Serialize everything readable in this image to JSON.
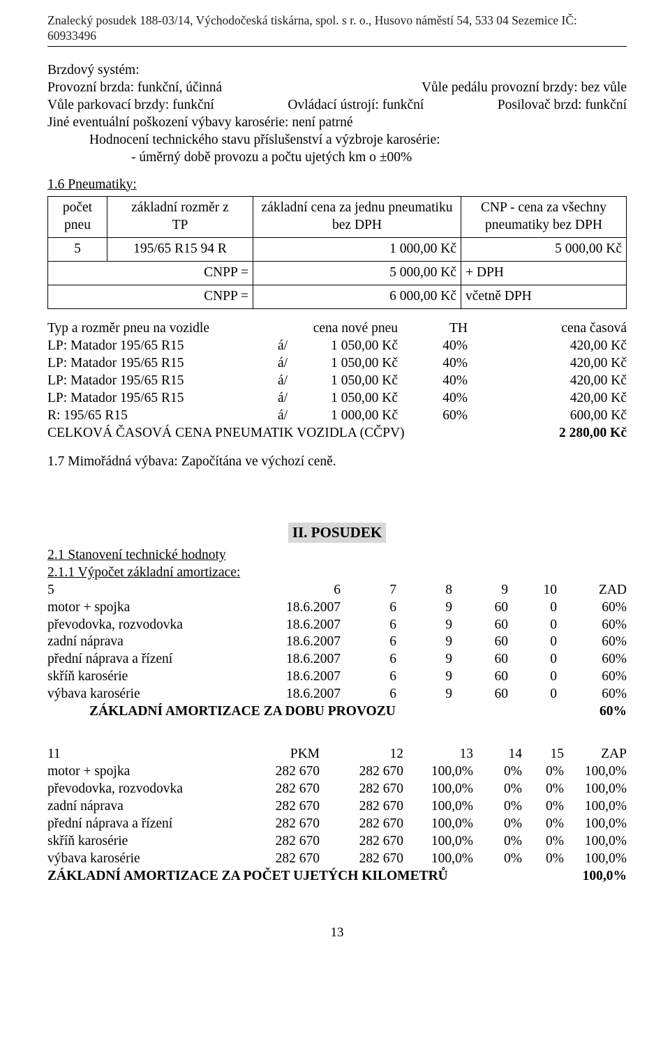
{
  "header": "Znalecký posudek 188-03/14, Východočeská tiskárna, spol. s r. o., Husovo náměstí 54, 533 04 Sezemice IČ: 60933496",
  "brakes": {
    "title": "Brzdový systém:",
    "l1a": "Provozní brzda: funkční, účinná",
    "l1b": "Vůle pedálu provozní brzdy: bez vůle",
    "l2a": "Vůle parkovací brzdy: funkční",
    "l2b": "Ovládací ústrojí: funkční",
    "l2c": "Posilovač brzd: funkční",
    "l3": "Jiné eventuální poškození výbavy karosérie: není patrné",
    "l4": "Hodnocení technického stavu příslušenství a výzbroje karosérie:",
    "l5": "- úměrný době provozu a počtu ujetých km o ±00%"
  },
  "tires": {
    "title": "1.6 Pneumatiky:",
    "h1a": "počet",
    "h1b": "pneu",
    "h2a": "základní rozměr z",
    "h2b": "TP",
    "h3a": "základní cena za jednu pneumatiku",
    "h3b": "bez DPH",
    "h4a": "CNP - cena za všechny",
    "h4b": "pneumatiky bez DPH",
    "r_count": "5",
    "r_size": "195/65 R15 94 R",
    "r_price": "1 000,00 Kč",
    "r_total": "5 000,00 Kč",
    "cnpp": "CNPP =",
    "cnpp_v1": "5 000,00 Kč",
    "cnpp_s1": "+ DPH",
    "cnpp_v2": "6 000,00 Kč",
    "cnpp_s2": "včetně DPH"
  },
  "pneu_list": {
    "hdr": {
      "a": "Typ a rozměr pneu na vozidle",
      "b": "",
      "c": "cena nové pneu",
      "d": "TH",
      "e": "cena   časová"
    },
    "rows": [
      {
        "a": "LP: Matador 195/65 R15",
        "b": "á/",
        "c": "1 050,00 Kč",
        "d": "40%",
        "e": "420,00 Kč"
      },
      {
        "a": "LP: Matador 195/65 R15",
        "b": "á/",
        "c": "1 050,00 Kč",
        "d": "40%",
        "e": "420,00 Kč"
      },
      {
        "a": "LP: Matador 195/65 R15",
        "b": "á/",
        "c": "1 050,00 Kč",
        "d": "40%",
        "e": "420,00 Kč"
      },
      {
        "a": "LP: Matador 195/65 R15",
        "b": "á/",
        "c": "1 050,00 Kč",
        "d": "40%",
        "e": "420,00 Kč"
      },
      {
        "a": "R: 195/65 R15",
        "b": "á/",
        "c": "1 000,00 Kč",
        "d": "60%",
        "e": "600,00 Kč"
      }
    ],
    "total_label": "CELKOVÁ  ČASOVÁ  CENA  PNEUMATIK  VOZIDLA  (CČPV)",
    "total_val": "2 280,00 Kč"
  },
  "extra": "1.7 Mimořádná výbava: Započítána ve výchozí ceně.",
  "posudek": {
    "title": "II. POSUDEK",
    "s21": "2.1 Stanovení technické hodnoty",
    "s211": "2.1.1 Výpočet základní amortizace:"
  },
  "amort1": {
    "hdr": [
      "5",
      "6",
      "7",
      "8",
      "9",
      "10",
      "ZAD"
    ],
    "rows": [
      [
        "motor + spojka",
        "18.6.2007",
        "6",
        "9",
        "60",
        "0",
        "60%"
      ],
      [
        "převodovka, rozvodovka",
        "18.6.2007",
        "6",
        "9",
        "60",
        "0",
        "60%"
      ],
      [
        "zadní náprava",
        "18.6.2007",
        "6",
        "9",
        "60",
        "0",
        "60%"
      ],
      [
        "přední náprava a řízení",
        "18.6.2007",
        "6",
        "9",
        "60",
        "0",
        "60%"
      ],
      [
        "skříň karosérie",
        "18.6.2007",
        "6",
        "9",
        "60",
        "0",
        "60%"
      ],
      [
        "výbava karosérie",
        "18.6.2007",
        "6",
        "9",
        "60",
        "0",
        "60%"
      ]
    ],
    "total_label": "ZÁKLADNÍ AMORTIZACE ZA DOBU PROVOZU",
    "total_val": "60%"
  },
  "amort2": {
    "hdr": [
      "11",
      "PKM",
      "12",
      "13",
      "14",
      "15",
      "ZAP"
    ],
    "rows": [
      [
        "motor + spojka",
        "282 670",
        "282 670",
        "100,0%",
        "0%",
        "0%",
        "100,0%"
      ],
      [
        "převodovka, rozvodovka",
        "282 670",
        "282 670",
        "100,0%",
        "0%",
        "0%",
        "100,0%"
      ],
      [
        "zadní náprava",
        "282 670",
        "282 670",
        "100,0%",
        "0%",
        "0%",
        "100,0%"
      ],
      [
        "přední náprava a řízení",
        "282 670",
        "282 670",
        "100,0%",
        "0%",
        "0%",
        "100,0%"
      ],
      [
        "skříň karosérie",
        "282 670",
        "282 670",
        "100,0%",
        "0%",
        "0%",
        "100,0%"
      ],
      [
        "výbava karosérie",
        "282 670",
        "282 670",
        "100,0%",
        "0%",
        "0%",
        "100,0%"
      ]
    ],
    "total_label": "ZÁKLADNÍ AMORTIZACE ZA POČET UJETÝCH KILOMETRŮ",
    "total_val": "100,0%"
  },
  "page_num": "13"
}
